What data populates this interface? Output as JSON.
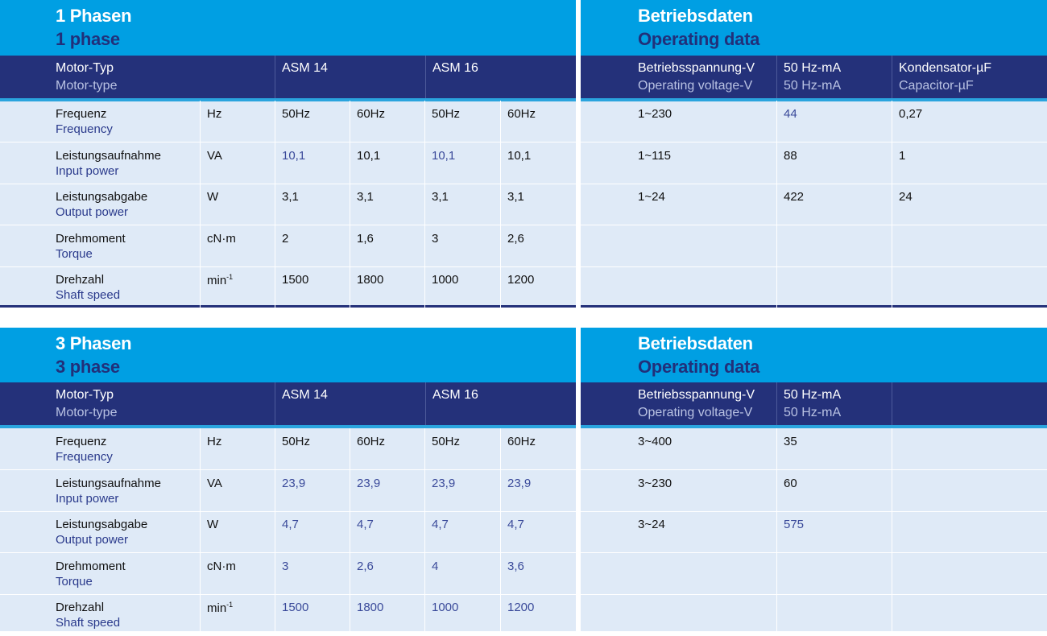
{
  "colors": {
    "cyan": "#009fe3",
    "navy": "#24317a",
    "light": "#dfeaf7",
    "blue_text": "#3a4a9a"
  },
  "single_phase": {
    "title_de": "1 Phasen",
    "title_en": "1 phase",
    "header": {
      "motor_de": "Motor-Typ",
      "motor_en": "Motor-type",
      "asm14": "ASM 14",
      "asm16": "ASM 16"
    },
    "rows": [
      {
        "de": "Frequenz",
        "en": "Frequency",
        "unit": "Hz",
        "vals": [
          "50Hz",
          "60Hz",
          "50Hz",
          "60Hz"
        ]
      },
      {
        "de": "Leistungsaufnahme",
        "en": "Input power",
        "unit": "VA",
        "vals": [
          "10,1",
          "10,1",
          "10,1",
          "10,1"
        ]
      },
      {
        "de": "Leistungsabgabe",
        "en": "Output power",
        "unit": "W",
        "vals": [
          "3,1",
          "3,1",
          "3,1",
          "3,1"
        ]
      },
      {
        "de": "Drehmoment",
        "en": "Torque",
        "unit": "cN·m",
        "vals": [
          "2",
          "1,6",
          "3",
          "2,6"
        ]
      },
      {
        "de": "Drehzahl",
        "en": "Shaft speed",
        "unit": "min",
        "unit_sup": "-1",
        "vals": [
          "1500",
          "1800",
          "1000",
          "1200"
        ]
      }
    ],
    "op": {
      "title_de": "Betriebsdaten",
      "title_en": "Operating data",
      "header": [
        {
          "de": "Betriebsspannung-V",
          "en": "Operating voltage-V"
        },
        {
          "de": "50 Hz-mA",
          "en": "50 Hz-mA"
        },
        {
          "de": "Kondensator-µF",
          "en": "Capacitor-µF"
        }
      ],
      "rows": [
        [
          "1~230",
          "44",
          "0,27"
        ],
        [
          "1~115",
          "88",
          "1"
        ],
        [
          "1~24",
          "422",
          "24"
        ]
      ]
    }
  },
  "three_phase": {
    "title_de": "3 Phasen",
    "title_en": "3 phase",
    "header": {
      "motor_de": "Motor-Typ",
      "motor_en": "Motor-type",
      "asm14": "ASM 14",
      "asm16": "ASM 16"
    },
    "rows": [
      {
        "de": "Frequenz",
        "en": "Frequency",
        "unit": "Hz",
        "vals": [
          "50Hz",
          "60Hz",
          "50Hz",
          "60Hz"
        ]
      },
      {
        "de": "Leistungsaufnahme",
        "en": "Input power",
        "unit": "VA",
        "vals": [
          "23,9",
          "23,9",
          "23,9",
          "23,9"
        ]
      },
      {
        "de": "Leistungsabgabe",
        "en": "Output power",
        "unit": "W",
        "vals": [
          "4,7",
          "4,7",
          "4,7",
          "4,7"
        ]
      },
      {
        "de": "Drehmoment",
        "en": "Torque",
        "unit": "cN·m",
        "vals": [
          "3",
          "2,6",
          "4",
          "3,6"
        ]
      },
      {
        "de": "Drehzahl",
        "en": "Shaft speed",
        "unit": "min",
        "unit_sup": "-1",
        "vals": [
          "1500",
          "1800",
          "1000",
          "1200"
        ]
      }
    ],
    "op": {
      "title_de": "Betriebsdaten",
      "title_en": "Operating data",
      "header": [
        {
          "de": "Betriebsspannung-V",
          "en": "Operating voltage-V"
        },
        {
          "de": "50 Hz-mA",
          "en": "50 Hz-mA"
        }
      ],
      "rows": [
        [
          "3~400",
          "35"
        ],
        [
          "3~230",
          "60"
        ],
        [
          "3~24",
          "575"
        ]
      ]
    }
  }
}
